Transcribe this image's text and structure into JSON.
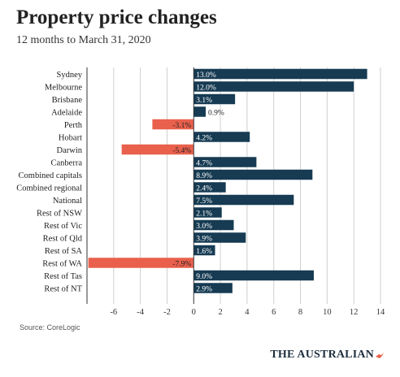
{
  "header": {
    "title": "Property price changes",
    "subtitle": "12 months to March 31, 2020"
  },
  "footer": {
    "source": "Source: CoreLogic",
    "logo": "THE AUSTRALIAN"
  },
  "colors": {
    "positive": "#163b53",
    "negative": "#e9604c",
    "grid": "#cfcfcf",
    "axis": "#333333"
  },
  "chart_data": {
    "type": "bar",
    "orientation": "horizontal",
    "title": "Property price changes",
    "subtitle": "12 months to March 31, 2020",
    "categories": [
      "Sydney",
      "Melbourne",
      "Brisbane",
      "Adelaide",
      "Perth",
      "Hobart",
      "Darwin",
      "Canberra",
      "Combined capitals",
      "Combined regional",
      "National",
      "Rest of NSW",
      "Rest of Vic",
      "Rest of Qld",
      "Rest of SA",
      "Rest of WA",
      "Rest of Tas",
      "Rest of NT"
    ],
    "values": [
      13.0,
      12.0,
      3.1,
      0.9,
      -3.1,
      4.2,
      -5.4,
      4.7,
      8.9,
      2.4,
      7.5,
      2.1,
      3.0,
      3.9,
      1.6,
      -7.9,
      9.0,
      2.9
    ],
    "value_labels": [
      "13.0%",
      "12.0%",
      "3.1%",
      "0.9%",
      "-3.1%",
      "4.2%",
      "-5.4%",
      "4.7%",
      "8.9%",
      "2.4%",
      "7.5%",
      "2.1%",
      "3.0%",
      "3.9%",
      "1.6%",
      "-7.9%",
      "9.0%",
      "2.9%"
    ],
    "xlim": [
      -8,
      14
    ],
    "xticks": [
      -6,
      -4,
      -2,
      0,
      2,
      4,
      6,
      8,
      10,
      12,
      14
    ],
    "grid": true
  }
}
